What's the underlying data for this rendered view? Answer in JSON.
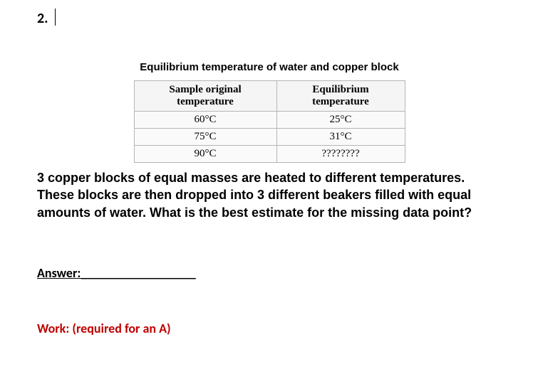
{
  "question_number": "2.",
  "table": {
    "caption": "Equilibrium temperature of water and copper block",
    "headers": [
      "Sample original temperature",
      "Equilibrium temperature"
    ],
    "rows": [
      [
        "60°C",
        "25°C"
      ],
      [
        "75°C",
        "31°C"
      ],
      [
        "90°C",
        "????????"
      ]
    ],
    "border_color": "#b5b5b5",
    "header_bg": "#f5f5f5",
    "cell_bg": "#fafafa",
    "caption_fontsize": 15,
    "cell_fontsize": 15
  },
  "question_text": "3 copper blocks of equal masses are heated to different temperatures. These blocks are then dropped into 3 different beakers filled with equal amounts of water. What is the best estimate for the missing data point?",
  "answer": {
    "label": "Answer:",
    "blank": "__________________"
  },
  "work": {
    "label": "Work: (required for an A)",
    "color": "#c00000"
  },
  "colors": {
    "background": "#ffffff",
    "text": "#000000"
  },
  "typography": {
    "question_number_fontsize": 20,
    "body_fontsize": 18,
    "body_font": "Arial",
    "table_font": "Times New Roman",
    "label_font": "Calibri"
  }
}
